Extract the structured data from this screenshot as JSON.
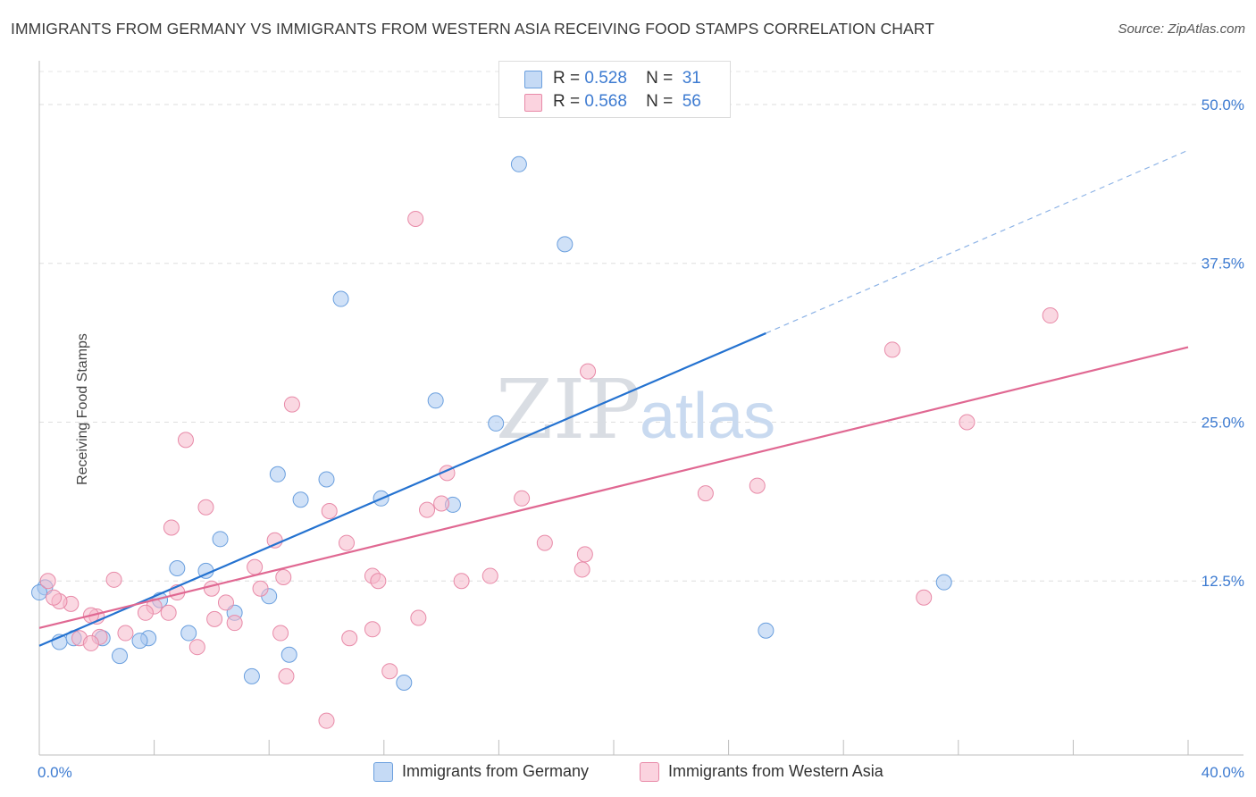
{
  "header": {
    "title": "IMMIGRANTS FROM GERMANY VS IMMIGRANTS FROM WESTERN ASIA RECEIVING FOOD STAMPS CORRELATION CHART",
    "source": "Source: ZipAtlas.com"
  },
  "watermark": {
    "part1": "ZIP",
    "part2": "atlas"
  },
  "legend_top": [
    {
      "r_label": "R =",
      "r_value": "0.528",
      "n_label": "N =",
      "n_value": "31",
      "color": "#a9c8f0"
    },
    {
      "r_label": "R =",
      "r_value": "0.568",
      "n_label": "N =",
      "n_value": "56",
      "color": "#f6b8cb"
    }
  ],
  "legend_bottom": [
    {
      "label": "Immigrants from Germany",
      "color": "#a9c8f0"
    },
    {
      "label": "Immigrants from Western Asia",
      "color": "#f6b8cb"
    }
  ],
  "chart_data": {
    "type": "scatter",
    "title": "IMMIGRANTS FROM GERMANY VS IMMIGRANTS FROM WESTERN ASIA RECEIVING FOOD STAMPS CORRELATION CHART",
    "xlabel": "",
    "ylabel": "Receiving Food Stamps",
    "xlim": [
      0,
      40
    ],
    "ylim": [
      0,
      50
    ],
    "x_tick_labels": [
      {
        "value": 0,
        "label": "0.0%"
      },
      {
        "value": 40,
        "label": "40.0%"
      }
    ],
    "y_tick_labels": [
      {
        "value": 12.5,
        "label": "12.5%"
      },
      {
        "value": 25,
        "label": "25.0%"
      },
      {
        "value": 37.5,
        "label": "37.5%"
      },
      {
        "value": 50,
        "label": "50.0%"
      }
    ],
    "grid": true,
    "legend_position": "top-center",
    "series": [
      {
        "name": "Immigrants from Germany",
        "color": "#a9c8f0",
        "stroke": "#6a9fde",
        "line_color": "#2472d0",
        "points": [
          [
            16.5,
            50.6
          ],
          [
            16.7,
            45.3
          ],
          [
            18.3,
            39.0
          ],
          [
            10.5,
            34.7
          ],
          [
            13.8,
            26.7
          ],
          [
            15.9,
            24.9
          ],
          [
            8.3,
            20.9
          ],
          [
            9.1,
            18.9
          ],
          [
            10.0,
            20.5
          ],
          [
            11.9,
            19.0
          ],
          [
            14.4,
            18.5
          ],
          [
            6.3,
            15.8
          ],
          [
            4.8,
            13.5
          ],
          [
            5.8,
            13.3
          ],
          [
            8.0,
            11.3
          ],
          [
            4.2,
            11.0
          ],
          [
            6.8,
            10.0
          ],
          [
            5.2,
            8.4
          ],
          [
            2.2,
            8.0
          ],
          [
            3.8,
            8.0
          ],
          [
            3.5,
            7.8
          ],
          [
            0.7,
            7.7
          ],
          [
            1.2,
            8.0
          ],
          [
            7.4,
            5.0
          ],
          [
            8.7,
            6.7
          ],
          [
            12.7,
            4.5
          ],
          [
            2.8,
            6.6
          ],
          [
            25.3,
            8.6
          ],
          [
            31.5,
            12.4
          ],
          [
            0.2,
            12.0
          ],
          [
            0.0,
            11.6
          ]
        ],
        "trend": {
          "x0": 0,
          "y0": 7.4,
          "x1": 25.3,
          "y1": 32.0,
          "dash_to_x": 40,
          "dash_to_y": 46.4
        }
      },
      {
        "name": "Immigrants from Western Asia",
        "color": "#f6b8cb",
        "stroke": "#e88aa8",
        "line_color": "#e06892",
        "points": [
          [
            13.1,
            41.0
          ],
          [
            35.2,
            33.4
          ],
          [
            19.1,
            29.0
          ],
          [
            29.7,
            30.7
          ],
          [
            8.8,
            26.4
          ],
          [
            32.3,
            25.0
          ],
          [
            5.1,
            23.6
          ],
          [
            14.2,
            21.0
          ],
          [
            16.8,
            19.0
          ],
          [
            23.2,
            19.4
          ],
          [
            25.0,
            20.0
          ],
          [
            5.8,
            18.3
          ],
          [
            10.1,
            18.0
          ],
          [
            14.0,
            18.6
          ],
          [
            13.5,
            18.1
          ],
          [
            4.6,
            16.7
          ],
          [
            8.2,
            15.7
          ],
          [
            10.7,
            15.5
          ],
          [
            17.6,
            15.5
          ],
          [
            19.0,
            14.6
          ],
          [
            18.9,
            13.4
          ],
          [
            2.6,
            12.6
          ],
          [
            8.5,
            12.8
          ],
          [
            7.5,
            13.6
          ],
          [
            11.6,
            12.9
          ],
          [
            11.8,
            12.5
          ],
          [
            14.7,
            12.5
          ],
          [
            15.7,
            12.9
          ],
          [
            4.0,
            10.5
          ],
          [
            3.7,
            10.0
          ],
          [
            4.5,
            10.0
          ],
          [
            6.0,
            11.9
          ],
          [
            4.8,
            11.6
          ],
          [
            6.5,
            10.8
          ],
          [
            7.7,
            11.9
          ],
          [
            2.0,
            9.7
          ],
          [
            1.8,
            9.8
          ],
          [
            1.1,
            10.7
          ],
          [
            0.7,
            10.9
          ],
          [
            0.5,
            11.2
          ],
          [
            6.1,
            9.5
          ],
          [
            6.8,
            9.2
          ],
          [
            3.0,
            8.4
          ],
          [
            1.4,
            8.0
          ],
          [
            2.1,
            8.1
          ],
          [
            1.8,
            7.6
          ],
          [
            5.5,
            7.3
          ],
          [
            8.4,
            8.4
          ],
          [
            10.8,
            8.0
          ],
          [
            11.6,
            8.7
          ],
          [
            13.2,
            9.6
          ],
          [
            12.2,
            5.4
          ],
          [
            8.6,
            5.0
          ],
          [
            10.0,
            1.5
          ],
          [
            0.3,
            12.5
          ],
          [
            30.8,
            11.2
          ]
        ],
        "trend": {
          "x0": 0,
          "y0": 8.8,
          "x1": 40,
          "y1": 30.9
        }
      }
    ]
  }
}
